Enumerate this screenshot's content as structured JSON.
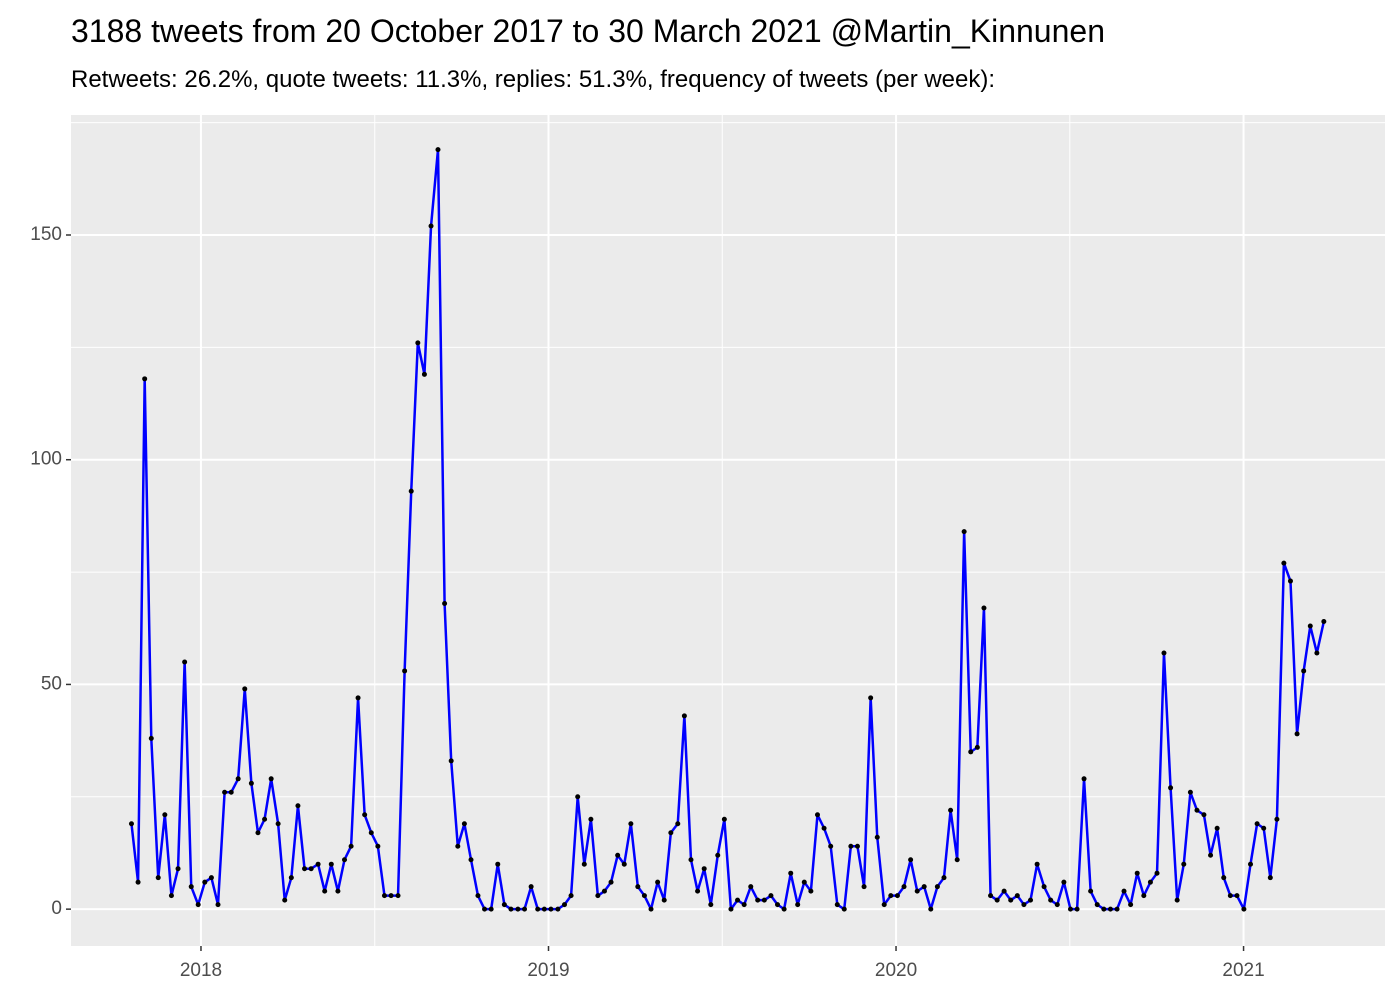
{
  "chart_data": {
    "type": "line",
    "title": "3188 tweets from 20 October 2017 to 30 March 2021 @Martin_Kinnunen",
    "subtitle": "Retweets: 26.2%, quote tweets: 11.3%, replies: 51.3%, frequency of tweets (per week):",
    "x": [
      2017.8,
      2017.819,
      2017.838,
      2017.857,
      2017.877,
      2017.896,
      2017.915,
      2017.934,
      2017.953,
      2017.972,
      2017.992,
      2018.011,
      2018.03,
      2018.049,
      2018.068,
      2018.087,
      2018.107,
      2018.126,
      2018.145,
      2018.164,
      2018.183,
      2018.202,
      2018.222,
      2018.241,
      2018.26,
      2018.279,
      2018.298,
      2018.317,
      2018.337,
      2018.356,
      2018.375,
      2018.394,
      2018.413,
      2018.432,
      2018.452,
      2018.471,
      2018.49,
      2018.509,
      2018.528,
      2018.547,
      2018.567,
      2018.586,
      2018.605,
      2018.624,
      2018.643,
      2018.662,
      2018.682,
      2018.701,
      2018.72,
      2018.739,
      2018.758,
      2018.777,
      2018.797,
      2018.816,
      2018.835,
      2018.854,
      2018.873,
      2018.892,
      2018.912,
      2018.931,
      2018.95,
      2018.969,
      2018.988,
      2019.007,
      2019.027,
      2019.046,
      2019.065,
      2019.084,
      2019.103,
      2019.122,
      2019.142,
      2019.161,
      2019.18,
      2019.199,
      2019.218,
      2019.237,
      2019.257,
      2019.276,
      2019.295,
      2019.314,
      2019.333,
      2019.352,
      2019.372,
      2019.391,
      2019.41,
      2019.429,
      2019.448,
      2019.467,
      2019.487,
      2019.506,
      2019.525,
      2019.544,
      2019.563,
      2019.582,
      2019.602,
      2019.621,
      2019.64,
      2019.659,
      2019.678,
      2019.697,
      2019.717,
      2019.736,
      2019.755,
      2019.774,
      2019.793,
      2019.812,
      2019.831,
      2019.851,
      2019.87,
      2019.889,
      2019.908,
      2019.927,
      2019.946,
      2019.966,
      2019.985,
      2020.004,
      2020.023,
      2020.042,
      2020.061,
      2020.081,
      2020.1,
      2020.119,
      2020.138,
      2020.157,
      2020.176,
      2020.196,
      2020.215,
      2020.234,
      2020.253,
      2020.272,
      2020.291,
      2020.311,
      2020.33,
      2020.349,
      2020.368,
      2020.387,
      2020.406,
      2020.426,
      2020.445,
      2020.464,
      2020.483,
      2020.502,
      2020.521,
      2020.541,
      2020.56,
      2020.579,
      2020.598,
      2020.617,
      2020.636,
      2020.656,
      2020.675,
      2020.694,
      2020.713,
      2020.732,
      2020.751,
      2020.771,
      2020.79,
      2020.809,
      2020.828,
      2020.847,
      2020.866,
      2020.886,
      2020.905,
      2020.924,
      2020.943,
      2020.962,
      2020.981,
      2021.001,
      2021.02,
      2021.039,
      2021.058,
      2021.077,
      2021.096,
      2021.116,
      2021.135,
      2021.154,
      2021.173,
      2021.192,
      2021.211,
      2021.231
    ],
    "series": [
      {
        "color": "#0000ff",
        "marker_color": "#000000",
        "values": [
          19,
          6,
          118,
          38,
          7,
          21,
          3,
          9,
          55,
          5,
          1,
          6,
          7,
          1,
          26,
          26,
          29,
          49,
          28,
          17,
          20,
          29,
          19,
          2,
          7,
          23,
          9,
          9,
          10,
          4,
          10,
          4,
          11,
          14,
          47,
          21,
          17,
          14,
          3,
          3,
          3,
          53,
          93,
          126,
          119,
          152,
          169,
          68,
          33,
          14,
          19,
          11,
          3,
          0,
          0,
          10,
          1,
          0,
          0,
          0,
          5,
          0,
          0,
          0,
          0,
          1,
          3,
          25,
          10,
          20,
          3,
          4,
          6,
          12,
          10,
          19,
          5,
          3,
          0,
          6,
          2,
          17,
          19,
          43,
          11,
          4,
          9,
          1,
          12,
          20,
          0,
          2,
          1,
          5,
          2,
          2,
          3,
          1,
          0,
          8,
          1,
          6,
          4,
          21,
          18,
          14,
          1,
          0,
          14,
          14,
          5,
          47,
          16,
          1,
          3,
          3,
          5,
          11,
          4,
          5,
          0,
          5,
          7,
          22,
          11,
          84,
          35,
          36,
          67,
          3,
          2,
          4,
          2,
          3,
          1,
          2,
          10,
          5,
          2,
          1,
          6,
          0,
          0,
          29,
          4,
          1,
          0,
          0,
          0,
          4,
          1,
          8,
          3,
          6,
          8,
          57,
          27,
          2,
          10,
          26,
          22,
          21,
          12,
          18,
          7,
          3,
          3,
          0,
          10,
          19,
          18,
          7,
          20,
          77,
          73,
          39,
          53,
          63,
          57,
          64
        ]
      }
    ],
    "xlim": [
      2017.626,
      2021.407
    ],
    "xticks": [
      2018,
      2019,
      2020,
      2021
    ],
    "ylim": [
      -8.2,
      176.7
    ],
    "yticks": [
      0,
      50,
      100,
      150
    ],
    "grid": true
  }
}
